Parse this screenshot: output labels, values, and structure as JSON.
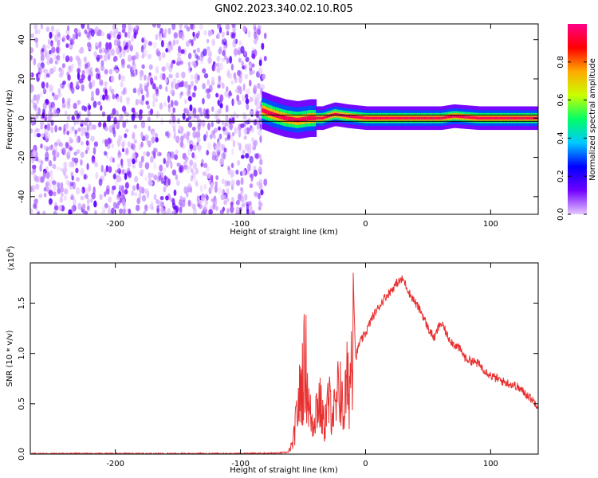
{
  "title": "GN02.2023.340.02.10.R05",
  "chart_data": [
    {
      "type": "heatmap",
      "xlabel": "Height of straight line (km)",
      "ylabel": "Frequency (Hz)",
      "xlim": [
        -268,
        138
      ],
      "ylim": [
        -49,
        48
      ],
      "xticks": [
        -200,
        -100,
        0,
        100
      ],
      "yticks": [
        -40,
        -20,
        0,
        20,
        40
      ],
      "noise_region": {
        "x_range": [
          -268,
          -80
        ],
        "y_range": [
          -49,
          48
        ]
      },
      "ridge": {
        "x": [
          -83,
          -75,
          -65,
          -55,
          -45,
          -35,
          -25,
          -15,
          0,
          20,
          40,
          60,
          70,
          90,
          110,
          138
        ],
        "y": [
          4,
          2,
          0,
          -1,
          0,
          0,
          2,
          1,
          0,
          0,
          0,
          0,
          1,
          0,
          0,
          0
        ],
        "peak_value": 0.95
      },
      "colorbar": {
        "label": "Normalized spectral amplitude",
        "range": [
          0.0,
          1.0
        ],
        "ticks": [
          "0.0",
          "0.2",
          "0.4",
          "0.6",
          "0.8"
        ],
        "colormap": [
          "#e6c8ff",
          "#7000ff",
          "#0000ff",
          "#00c8ff",
          "#00ff66",
          "#c8ff00",
          "#ffaa00",
          "#ff0000",
          "#ff0088"
        ]
      }
    },
    {
      "type": "line",
      "xlabel": "Height of straight line (km)",
      "ylabel": "SNR (10 * v/v)",
      "y_multiplier": "(x10",
      "y_multiplier_exp": "4",
      "y_multiplier_close": ")",
      "xlim": [
        -268,
        138
      ],
      "ylim": [
        0,
        1.9
      ],
      "xticks": [
        -200,
        -100,
        0,
        100
      ],
      "yticks": [
        "0.0",
        "0.5",
        "1.0",
        "1.5"
      ],
      "series": [
        {
          "color": "#e83030",
          "x": [
            -268,
            -200,
            -150,
            -100,
            -70,
            -62,
            -58,
            -55,
            -52,
            -48,
            -45,
            -42,
            -40,
            -37,
            -33,
            -30,
            -27,
            -24,
            -22,
            -20,
            -18,
            -15,
            -13,
            -10,
            -8,
            -5,
            0,
            5,
            10,
            15,
            20,
            25,
            30,
            35,
            40,
            45,
            50,
            55,
            58,
            60,
            63,
            65,
            70,
            75,
            80,
            90,
            100,
            110,
            120,
            130,
            138
          ],
          "y": [
            0.005,
            0.005,
            0.005,
            0.005,
            0.01,
            0.02,
            0.15,
            0.55,
            0.9,
            1.35,
            0.6,
            0.45,
            0.65,
            0.75,
            0.4,
            0.7,
            0.7,
            0.55,
            0.85,
            1.0,
            0.5,
            1.0,
            0.9,
            1.85,
            0.95,
            1.1,
            1.2,
            1.35,
            1.45,
            1.55,
            1.62,
            1.7,
            1.74,
            1.6,
            1.5,
            1.4,
            1.25,
            1.15,
            1.25,
            1.3,
            1.25,
            1.18,
            1.1,
            1.05,
            0.95,
            0.9,
            0.78,
            0.72,
            0.68,
            0.58,
            0.48
          ]
        }
      ]
    }
  ]
}
